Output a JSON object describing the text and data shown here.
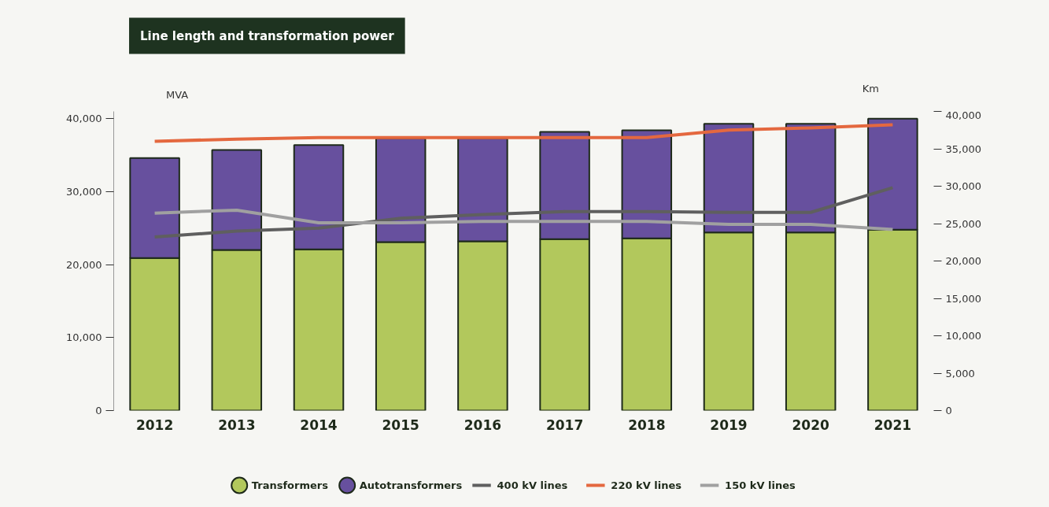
{
  "chart_data": {
    "type": "bar",
    "title": "Line length and transformation power",
    "ylabel": "MVA",
    "y2label": "Km",
    "categories": [
      "2012",
      "2013",
      "2014",
      "2015",
      "2016",
      "2017",
      "2018",
      "2019",
      "2020",
      "2021"
    ],
    "stacked": true,
    "series": [
      {
        "name": "Transformers",
        "color": "#b2c85c",
        "values": [
          20900,
          22000,
          22100,
          23100,
          23200,
          23500,
          23600,
          24400,
          24400,
          24800
        ]
      },
      {
        "name": "Autotransformers",
        "color": "#67509e",
        "values": [
          13700,
          13700,
          14300,
          14200,
          14100,
          14700,
          14800,
          14900,
          14900,
          15200
        ]
      },
      {
        "name": "400 kV lines",
        "type": "line",
        "axis": "y2",
        "color": "#5f5f5f",
        "values": [
          23200,
          24000,
          24400,
          25700,
          26200,
          26600,
          26600,
          26500,
          26500,
          29800
        ]
      },
      {
        "name": "220 kV lines",
        "type": "line",
        "axis": "y2",
        "color": "#e4683f",
        "values": [
          36000,
          36300,
          36500,
          36500,
          36500,
          36500,
          36500,
          37500,
          37800,
          38200
        ]
      },
      {
        "name": "150 kV lines",
        "type": "line",
        "axis": "y2",
        "color": "#a0a0a0",
        "values": [
          26400,
          26800,
          25100,
          25100,
          25300,
          25300,
          25300,
          24900,
          24900,
          24200
        ]
      }
    ],
    "ylim": [
      0,
      41000
    ],
    "yticks": [
      {
        "value": 0,
        "label": "0"
      },
      {
        "value": 10000,
        "label": "10,000"
      },
      {
        "value": 20000,
        "label": "20,000"
      },
      {
        "value": 30000,
        "label": "30,000"
      },
      {
        "value": 40000,
        "label": "40,000"
      }
    ],
    "y2lim": [
      0,
      40000
    ],
    "y2ticks": [
      {
        "value": 0,
        "label": "0"
      },
      {
        "value": 5000,
        "label": "5,000"
      },
      {
        "value": 10000,
        "label": "10,000"
      },
      {
        "value": 15000,
        "label": "15,000"
      },
      {
        "value": 20000,
        "label": "20,000"
      },
      {
        "value": 25000,
        "label": "25,000"
      },
      {
        "value": 30000,
        "label": "30,000"
      },
      {
        "value": 35000,
        "label": "35,000"
      },
      {
        "value": 40000,
        "label": "40,000"
      }
    ],
    "grid": false,
    "legend": "bottom"
  }
}
